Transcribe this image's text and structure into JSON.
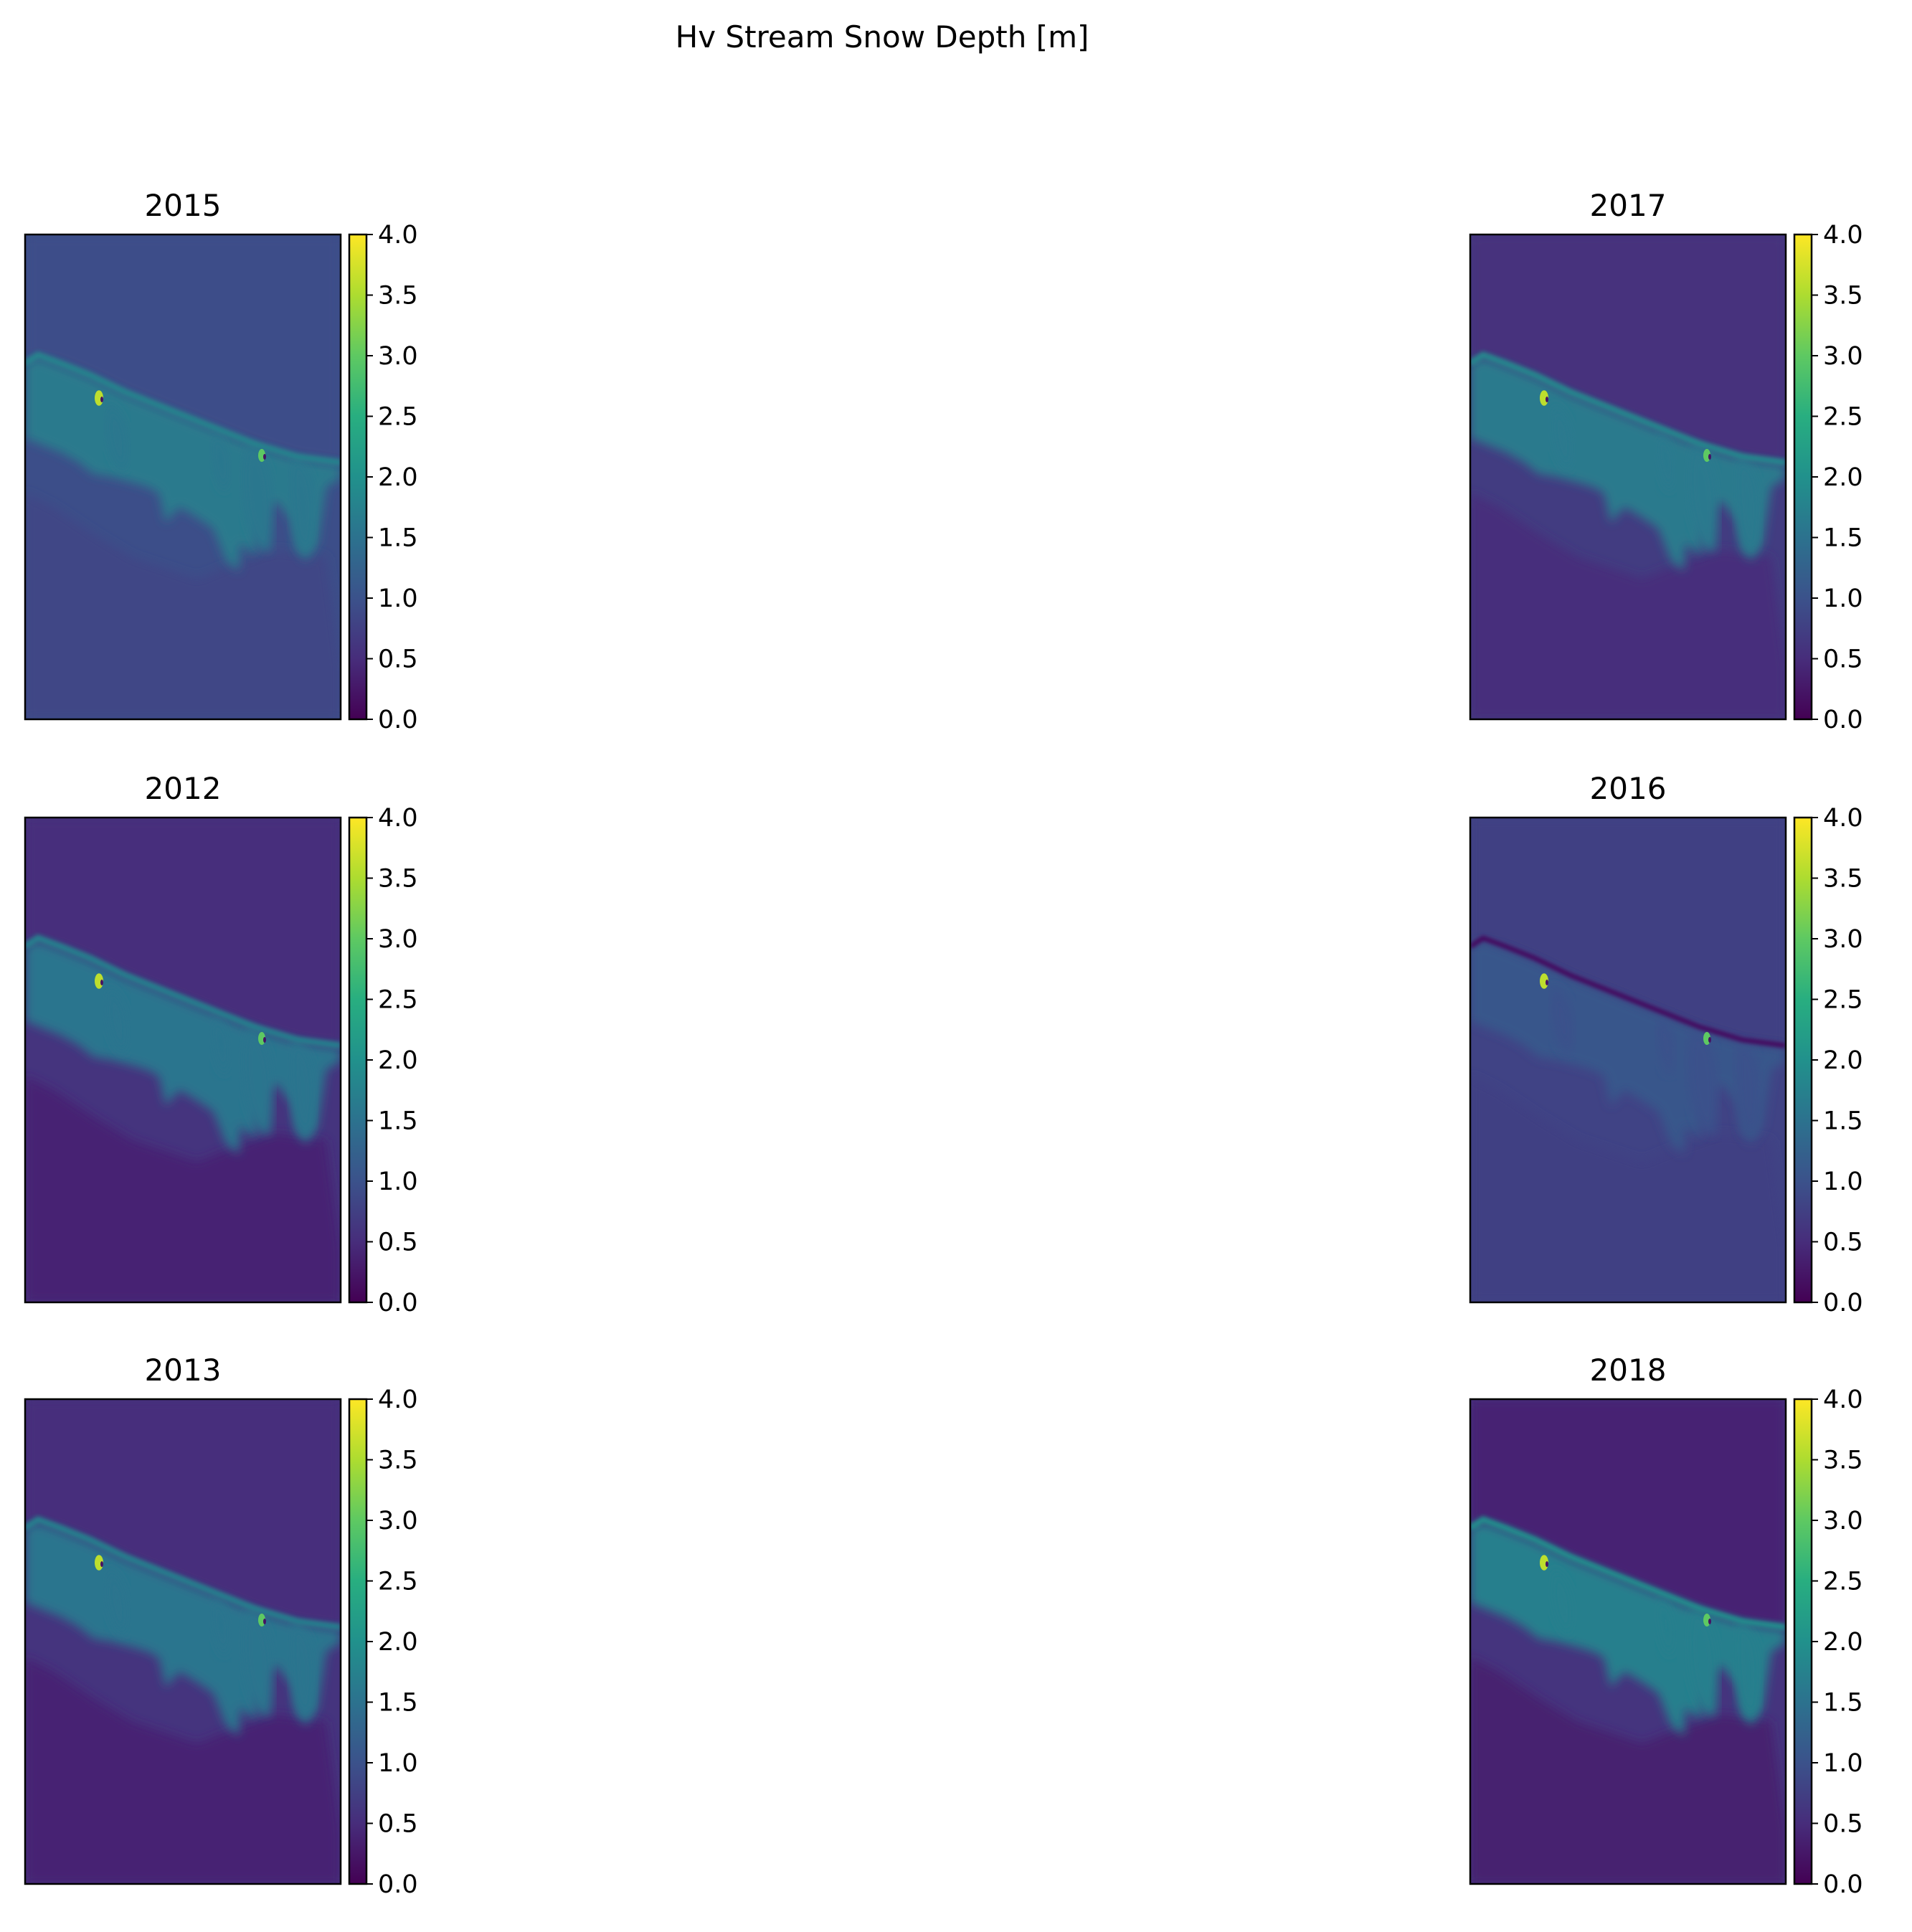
{
  "figure": {
    "title": "Hv Stream Snow Depth [m]"
  },
  "chart_data": {
    "type": "heatmap",
    "title": "Hv Stream Snow Depth [m]",
    "colormap": "viridis",
    "colorbar": {
      "range": [
        0.0,
        4.0
      ],
      "ticks": [
        "0.0",
        "0.5",
        "1.0",
        "1.5",
        "2.0",
        "2.5",
        "3.0",
        "3.5",
        "4.0"
      ]
    },
    "grid": false,
    "panels": [
      {
        "title": "2015",
        "base_value": 0.95,
        "band_value": 1.75,
        "upper_value": 0.95,
        "lower_value": 0.85,
        "channel_dark": false
      },
      {
        "title": "2017",
        "base_value": 0.7,
        "band_value": 1.8,
        "upper_value": 0.55,
        "lower_value": 0.5,
        "channel_dark": false
      },
      {
        "title": "2012",
        "base_value": 0.6,
        "band_value": 1.7,
        "upper_value": 0.5,
        "lower_value": 0.4,
        "channel_dark": false
      },
      {
        "title": "2016",
        "base_value": 0.8,
        "band_value": 1.1,
        "upper_value": 0.75,
        "lower_value": 0.75,
        "channel_dark": true
      },
      {
        "title": "2013",
        "base_value": 0.6,
        "band_value": 1.7,
        "upper_value": 0.5,
        "lower_value": 0.4,
        "channel_dark": false
      },
      {
        "title": "2018",
        "base_value": 0.6,
        "band_value": 1.9,
        "upper_value": 0.4,
        "lower_value": 0.35,
        "channel_dark": false
      }
    ]
  }
}
